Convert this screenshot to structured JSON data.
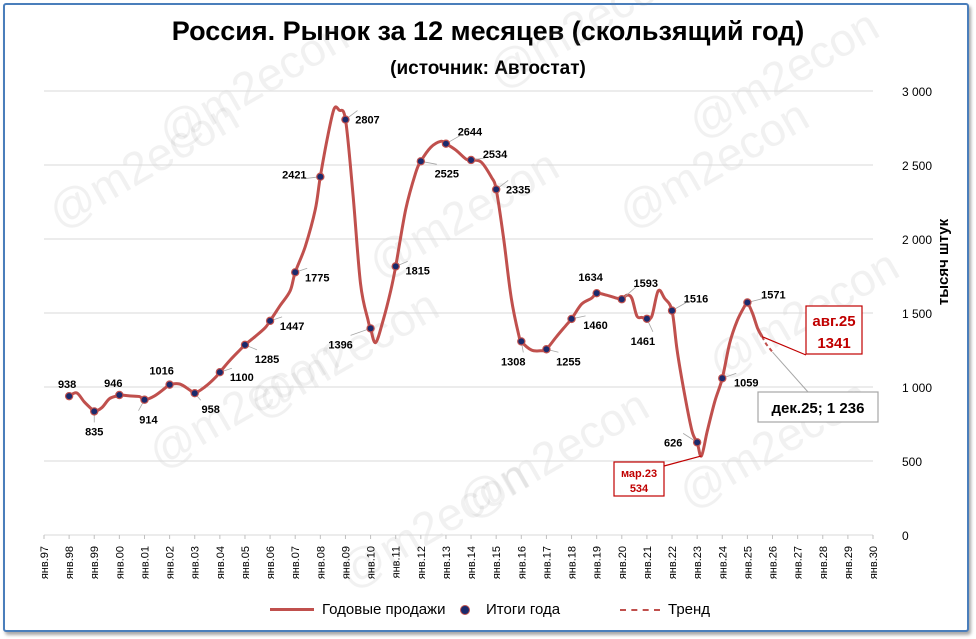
{
  "chart_data": {
    "type": "line",
    "title": "Россия. Рынок за 12 месяцев (скользящий год)",
    "subtitle": "(источник: Автостат)",
    "ylabel": "тысяч штук",
    "ylim": [
      0,
      3000
    ],
    "y_ticks": [
      0,
      500,
      1000,
      1500,
      2000,
      2500,
      3000
    ],
    "y_tick_labels": [
      "0",
      "500",
      "1 000",
      "1 500",
      "2 000",
      "2 500",
      "3 000"
    ],
    "x_tick_labels": [
      "янв.97",
      "янв.98",
      "янв.99",
      "янв.00",
      "янв.01",
      "янв.02",
      "янв.03",
      "янв.04",
      "янв.05",
      "янв.06",
      "янв.07",
      "янв.08",
      "янв.09",
      "янв.10",
      "янв.11",
      "янв.12",
      "янв.13",
      "янв.14",
      "янв.15",
      "янв.16",
      "янв.17",
      "янв.18",
      "янв.19",
      "янв.20",
      "янв.21",
      "янв.22",
      "янв.23",
      "янв.24",
      "янв.25",
      "янв.26",
      "янв.27",
      "янв.28",
      "янв.29",
      "янв.30"
    ],
    "grid": true,
    "legend_position": "bottom",
    "watermark": "@m2econ",
    "colors": {
      "line": "#c0504d",
      "marker_fill": "#1a2a6c",
      "grid": "#d9d9d9",
      "callout_text": "#c00000"
    },
    "series": [
      {
        "name": "Годовые продажи",
        "style": "solid",
        "x": [
          1998.0,
          1998.3,
          1998.6,
          1998.9,
          1999.0,
          1999.3,
          1999.6,
          1999.9,
          2000.0,
          2000.4,
          2000.8,
          2001.0,
          2001.4,
          2001.8,
          2002.0,
          2002.4,
          2002.8,
          2003.0,
          2003.4,
          2003.8,
          2004.0,
          2004.4,
          2004.8,
          2005.0,
          2005.4,
          2005.8,
          2006.0,
          2006.4,
          2006.8,
          2007.0,
          2007.4,
          2007.8,
          2008.0,
          2008.3,
          2008.55,
          2008.75,
          2009.0,
          2009.3,
          2009.6,
          2009.9,
          2010.0,
          2010.2,
          2010.5,
          2010.8,
          2011.0,
          2011.4,
          2011.8,
          2012.0,
          2012.4,
          2012.8,
          2013.0,
          2013.4,
          2013.8,
          2014.0,
          2014.4,
          2014.8,
          2015.0,
          2015.3,
          2015.6,
          2015.9,
          2016.0,
          2016.4,
          2016.8,
          2017.0,
          2017.4,
          2017.8,
          2018.0,
          2018.4,
          2018.8,
          2019.0,
          2019.4,
          2019.8,
          2020.0,
          2020.2,
          2020.4,
          2020.6,
          2020.8,
          2021.0,
          2021.2,
          2021.45,
          2021.7,
          2022.0,
          2022.2,
          2022.5,
          2022.8,
          2023.0,
          2023.17,
          2023.4,
          2023.7,
          2024.0,
          2024.3,
          2024.6,
          2024.9,
          2025.0,
          2025.2,
          2025.4,
          2025.58
        ],
        "values": [
          938,
          960,
          900,
          850,
          835,
          860,
          920,
          940,
          946,
          940,
          935,
          914,
          940,
          990,
          1016,
          1020,
          980,
          958,
          1000,
          1060,
          1100,
          1180,
          1250,
          1285,
          1340,
          1400,
          1447,
          1550,
          1650,
          1775,
          1950,
          2200,
          2421,
          2700,
          2880,
          2870,
          2807,
          2300,
          1700,
          1450,
          1396,
          1300,
          1450,
          1650,
          1815,
          2200,
          2450,
          2525,
          2620,
          2660,
          2644,
          2600,
          2540,
          2534,
          2520,
          2420,
          2335,
          2000,
          1600,
          1350,
          1308,
          1250,
          1245,
          1255,
          1340,
          1420,
          1460,
          1560,
          1600,
          1634,
          1620,
          1600,
          1593,
          1620,
          1600,
          1480,
          1470,
          1461,
          1480,
          1650,
          1600,
          1516,
          1250,
          950,
          700,
          626,
          534,
          700,
          900,
          1059,
          1300,
          1450,
          1550,
          1571,
          1500,
          1400,
          1341
        ]
      },
      {
        "name": "Итоги года",
        "style": "markers",
        "points": [
          {
            "x": 1998.0,
            "y": 938,
            "label": "938"
          },
          {
            "x": 1999.0,
            "y": 835,
            "label": "835"
          },
          {
            "x": 2000.0,
            "y": 946,
            "label": "946"
          },
          {
            "x": 2001.0,
            "y": 914,
            "label": "914"
          },
          {
            "x": 2002.0,
            "y": 1016,
            "label": "1016"
          },
          {
            "x": 2003.0,
            "y": 958,
            "label": "958"
          },
          {
            "x": 2004.0,
            "y": 1100,
            "label": "1100"
          },
          {
            "x": 2005.0,
            "y": 1285,
            "label": "1285"
          },
          {
            "x": 2006.0,
            "y": 1447,
            "label": "1447"
          },
          {
            "x": 2007.0,
            "y": 1775,
            "label": "1775"
          },
          {
            "x": 2008.0,
            "y": 2421,
            "label": "2421"
          },
          {
            "x": 2009.0,
            "y": 2807,
            "label": "2807"
          },
          {
            "x": 2010.0,
            "y": 1396,
            "label": "1396"
          },
          {
            "x": 2011.0,
            "y": 1815,
            "label": "1815"
          },
          {
            "x": 2012.0,
            "y": 2525,
            "label": "2525"
          },
          {
            "x": 2013.0,
            "y": 2644,
            "label": "2644"
          },
          {
            "x": 2014.0,
            "y": 2534,
            "label": "2534"
          },
          {
            "x": 2015.0,
            "y": 2335,
            "label": "2335"
          },
          {
            "x": 2016.0,
            "y": 1308,
            "label": "1308"
          },
          {
            "x": 2017.0,
            "y": 1255,
            "label": "1255"
          },
          {
            "x": 2018.0,
            "y": 1460,
            "label": "1460"
          },
          {
            "x": 2019.0,
            "y": 1634,
            "label": "1634"
          },
          {
            "x": 2020.0,
            "y": 1593,
            "label": "1593"
          },
          {
            "x": 2021.0,
            "y": 1461,
            "label": "1461"
          },
          {
            "x": 2022.0,
            "y": 1516,
            "label": "1516"
          },
          {
            "x": 2023.0,
            "y": 626,
            "label": "626"
          },
          {
            "x": 2024.0,
            "y": 1059,
            "label": "1059"
          },
          {
            "x": 2025.0,
            "y": 1571,
            "label": "1571"
          }
        ]
      },
      {
        "name": "Тренд",
        "style": "dashed",
        "x": [
          2025.58,
          2025.75,
          2026.0
        ],
        "values": [
          1341,
          1290,
          1236
        ]
      }
    ],
    "callouts": [
      {
        "name": "aug25",
        "line1": "авг.25",
        "line2": "1341",
        "x": 2025.58,
        "y": 1341
      },
      {
        "name": "mar23",
        "line1": "мар.23",
        "line2": "534",
        "x": 2023.17,
        "y": 534
      },
      {
        "name": "dec25",
        "line1": "дек.25; 1 236",
        "x": 2026.0,
        "y": 1236
      }
    ]
  }
}
